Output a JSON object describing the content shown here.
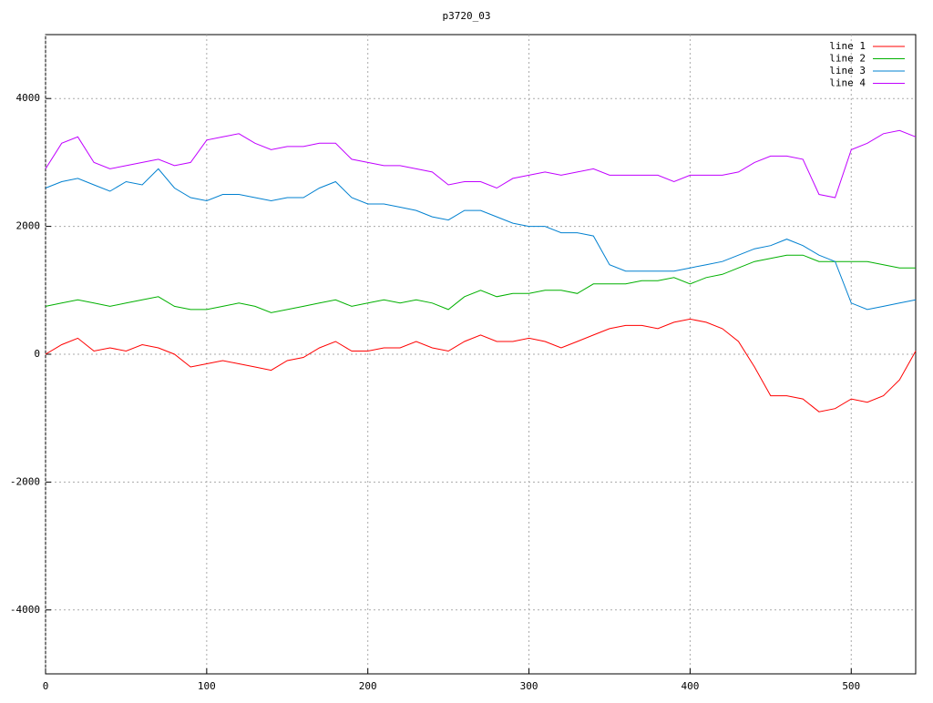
{
  "chart_data": {
    "type": "line",
    "title": "p3720_03",
    "x": [
      0,
      10,
      20,
      30,
      40,
      50,
      60,
      70,
      80,
      90,
      100,
      110,
      120,
      130,
      140,
      150,
      160,
      170,
      180,
      190,
      200,
      210,
      220,
      230,
      240,
      250,
      260,
      270,
      280,
      290,
      300,
      310,
      320,
      330,
      340,
      350,
      360,
      370,
      380,
      390,
      400,
      410,
      420,
      430,
      440,
      450,
      460,
      470,
      480,
      490,
      500,
      510,
      520,
      530,
      540
    ],
    "series": [
      {
        "name": "line 1",
        "color": "#ff0000",
        "values": [
          0,
          150,
          250,
          50,
          100,
          50,
          150,
          100,
          0,
          -200,
          -150,
          -100,
          -150,
          -200,
          -250,
          -100,
          -50,
          100,
          200,
          50,
          50,
          100,
          100,
          200,
          100,
          50,
          200,
          300,
          200,
          200,
          250,
          200,
          100,
          200,
          300,
          400,
          450,
          450,
          400,
          500,
          550,
          500,
          400,
          200,
          -200,
          -650,
          -650,
          -700,
          -900,
          -850,
          -700,
          -750,
          -650,
          -400,
          50
        ]
      },
      {
        "name": "line 2",
        "color": "#00b000",
        "values": [
          750,
          800,
          850,
          800,
          750,
          800,
          850,
          900,
          750,
          700,
          700,
          750,
          800,
          750,
          650,
          700,
          750,
          800,
          850,
          750,
          800,
          850,
          800,
          850,
          800,
          700,
          900,
          1000,
          900,
          950,
          950,
          1000,
          1000,
          950,
          1100,
          1100,
          1100,
          1150,
          1150,
          1200,
          1100,
          1200,
          1250,
          1350,
          1450,
          1500,
          1550,
          1550,
          1450,
          1450,
          1450,
          1450,
          1400,
          1350,
          1350
        ]
      },
      {
        "name": "line 3",
        "color": "#0080d0",
        "values": [
          2600,
          2700,
          2750,
          2650,
          2550,
          2700,
          2650,
          2900,
          2600,
          2450,
          2400,
          2500,
          2500,
          2450,
          2400,
          2450,
          2450,
          2600,
          2700,
          2450,
          2350,
          2350,
          2300,
          2250,
          2150,
          2100,
          2250,
          2250,
          2150,
          2050,
          2000,
          2000,
          1900,
          1900,
          1850,
          1400,
          1300,
          1300,
          1300,
          1300,
          1350,
          1400,
          1450,
          1550,
          1650,
          1700,
          1800,
          1700,
          1550,
          1450,
          800,
          700,
          750,
          800,
          850
        ]
      },
      {
        "name": "line 4",
        "color": "#c000ff",
        "values": [
          2900,
          3300,
          3400,
          3000,
          2900,
          2950,
          3000,
          3050,
          2950,
          3000,
          3350,
          3400,
          3450,
          3300,
          3200,
          3250,
          3250,
          3300,
          3300,
          3050,
          3000,
          2950,
          2950,
          2900,
          2850,
          2650,
          2700,
          2700,
          2600,
          2750,
          2800,
          2850,
          2800,
          2850,
          2900,
          2800,
          2800,
          2800,
          2800,
          2700,
          2800,
          2800,
          2800,
          2850,
          3000,
          3100,
          3100,
          3050,
          2500,
          2450,
          3200,
          3300,
          3450,
          3500,
          3400
        ]
      }
    ],
    "xlim": [
      0,
      540
    ],
    "xticks": [
      0,
      100,
      200,
      300,
      400,
      500
    ],
    "ylim": [
      -5000,
      5000
    ],
    "yticks": [
      -4000,
      -2000,
      0,
      2000,
      4000
    ],
    "grid": true,
    "legend": "top-right"
  }
}
